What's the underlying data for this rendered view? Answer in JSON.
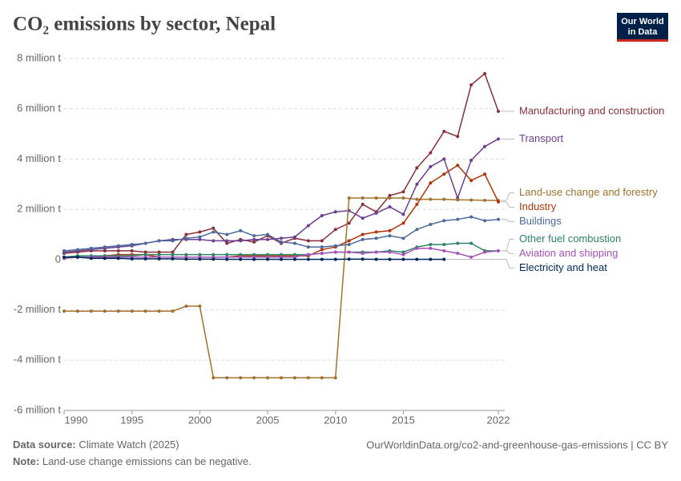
{
  "chart_data": {
    "type": "line",
    "title": "CO₂ emissions by sector, Nepal",
    "logo": [
      "Our World",
      "in Data"
    ],
    "source_label": "Data source:",
    "source": "Climate Watch (2025)",
    "link": "OurWorldinData.org/co2-and-greenhouse-gas-emissions | CC BY",
    "note_label": "Note:",
    "note": "Land-use change emissions can be negative.",
    "x": [
      1990,
      1991,
      1992,
      1993,
      1994,
      1995,
      1996,
      1997,
      1998,
      1999,
      2000,
      2001,
      2002,
      2003,
      2004,
      2005,
      2006,
      2007,
      2008,
      2009,
      2010,
      2011,
      2012,
      2013,
      2014,
      2015,
      2016,
      2017,
      2018,
      2019,
      2020,
      2021,
      2022
    ],
    "xlim": [
      1990,
      2022
    ],
    "xticks": [
      1990,
      1995,
      2000,
      2005,
      2010,
      2015,
      2022
    ],
    "ylim": [
      -6000000,
      8000000
    ],
    "yticks": [
      {
        "value": -6000000,
        "label": "-6 million t"
      },
      {
        "value": -4000000,
        "label": "-4 million t"
      },
      {
        "value": -2000000,
        "label": "-2 million t"
      },
      0,
      {
        "value": 2000000,
        "label": "2 million t"
      },
      {
        "value": 4000000,
        "label": "4 million t"
      },
      {
        "value": 6000000,
        "label": "6 million t"
      },
      {
        "value": 8000000,
        "label": "8 million t"
      }
    ],
    "grid": true,
    "series": [
      {
        "name": "Manufacturing and construction",
        "color": "#883039",
        "values": [
          250000,
          300000,
          350000,
          350000,
          350000,
          350000,
          300000,
          300000,
          300000,
          1000000,
          1100000,
          1250000,
          650000,
          800000,
          700000,
          950000,
          650000,
          850000,
          750000,
          750000,
          1200000,
          1450000,
          2200000,
          1900000,
          2550000,
          2700000,
          3650000,
          4250000,
          5100000,
          4900000,
          6950000,
          7400000,
          5900000
        ]
      },
      {
        "name": "Transport",
        "color": "#6d3e91",
        "values": [
          300000,
          350000,
          400000,
          450000,
          500000,
          550000,
          650000,
          750000,
          800000,
          800000,
          800000,
          750000,
          750000,
          750000,
          800000,
          800000,
          850000,
          900000,
          1350000,
          1750000,
          1900000,
          1950000,
          1650000,
          1850000,
          2100000,
          1800000,
          3000000,
          3700000,
          4000000,
          2450000,
          3950000,
          4500000,
          4800000
        ]
      },
      {
        "name": "Land-use change and forestry",
        "color": "#a2722d",
        "values": [
          -2050000,
          -2050000,
          -2050000,
          -2050000,
          -2050000,
          -2050000,
          -2050000,
          -2050000,
          -2050000,
          -1850000,
          -1850000,
          -4700000,
          -4700000,
          -4700000,
          -4700000,
          -4700000,
          -4700000,
          -4700000,
          -4700000,
          -4700000,
          -4700000,
          2450000,
          2450000,
          2450000,
          2450000,
          2450000,
          2400000,
          2400000,
          2400000,
          2380000,
          2370000,
          2360000,
          2350000
        ]
      },
      {
        "name": "Industry",
        "color": "#b13507",
        "values": [
          50000,
          100000,
          100000,
          150000,
          200000,
          200000,
          200000,
          100000,
          100000,
          100000,
          100000,
          100000,
          100000,
          150000,
          150000,
          150000,
          150000,
          150000,
          150000,
          400000,
          500000,
          750000,
          1000000,
          1100000,
          1150000,
          1450000,
          2200000,
          3050000,
          3400000,
          3750000,
          3150000,
          3400000,
          2300000
        ]
      },
      {
        "name": "Buildings",
        "color": "#4c6a9c",
        "values": [
          350000,
          400000,
          450000,
          500000,
          550000,
          600000,
          650000,
          750000,
          750000,
          850000,
          900000,
          1100000,
          1000000,
          1150000,
          950000,
          1000000,
          700000,
          650000,
          500000,
          500000,
          550000,
          600000,
          800000,
          850000,
          950000,
          850000,
          1200000,
          1400000,
          1550000,
          1600000,
          1700000,
          1550000,
          1600000
        ]
      },
      {
        "name": "Other fuel combustion",
        "color": "#2c8465",
        "values": [
          100000,
          150000,
          150000,
          150000,
          150000,
          150000,
          200000,
          200000,
          200000,
          200000,
          200000,
          200000,
          200000,
          200000,
          200000,
          200000,
          200000,
          200000,
          200000,
          250000,
          300000,
          300000,
          300000,
          300000,
          350000,
          300000,
          500000,
          600000,
          600000,
          650000,
          650000,
          350000,
          350000
        ]
      },
      {
        "name": "Aviation and shipping",
        "color": "#a652ba",
        "values": [
          50000,
          100000,
          100000,
          100000,
          100000,
          100000,
          100000,
          100000,
          100000,
          100000,
          100000,
          100000,
          100000,
          100000,
          100000,
          100000,
          100000,
          100000,
          200000,
          250000,
          300000,
          300000,
          250000,
          300000,
          300000,
          200000,
          450000,
          450000,
          350000,
          250000,
          100000,
          300000,
          350000
        ]
      },
      {
        "name": "Electricity and heat",
        "color": "#00295b",
        "values": [
          100000,
          100000,
          50000,
          50000,
          50000,
          30000,
          30000,
          30000,
          30000,
          20000,
          20000,
          20000,
          10000,
          10000,
          10000,
          10000,
          10000,
          10000,
          10000,
          10000,
          10000,
          20000,
          20000,
          10000,
          10000,
          10000,
          10000,
          10000,
          10000,
          null,
          null,
          null,
          null
        ]
      }
    ]
  }
}
